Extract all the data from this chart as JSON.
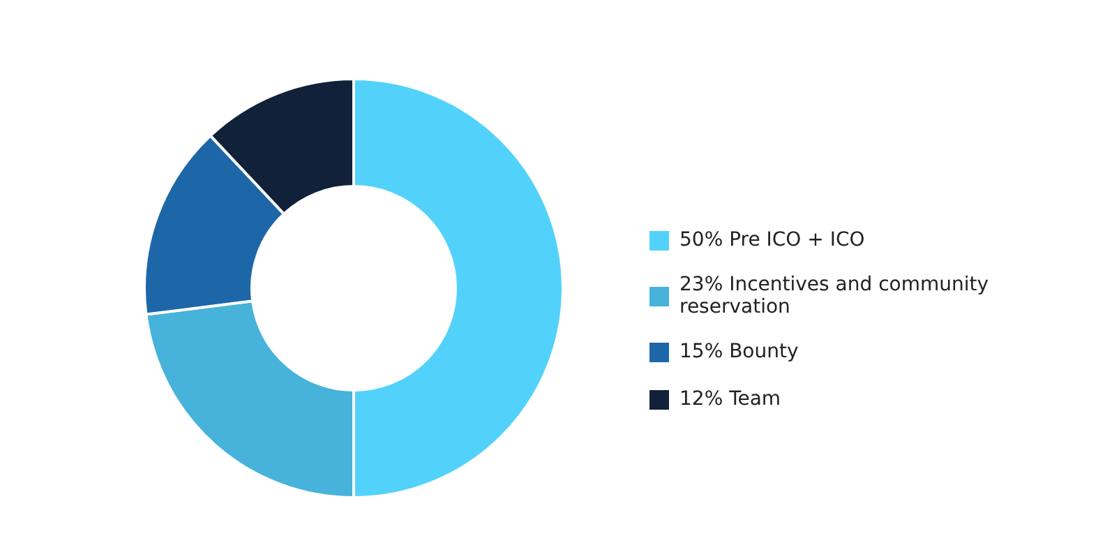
{
  "chart_data": {
    "type": "donut",
    "categories": [
      "Pre ICO + ICO",
      "Incentives and community reservation",
      "Bounty",
      "Team"
    ],
    "values": [
      50,
      23,
      15,
      12
    ],
    "value_labels": [
      "50%",
      "23%",
      "15%",
      "12%"
    ],
    "colors": [
      "#52d2fa",
      "#47b2da",
      "#1d67a9",
      "#12213a"
    ],
    "legend": "right"
  }
}
